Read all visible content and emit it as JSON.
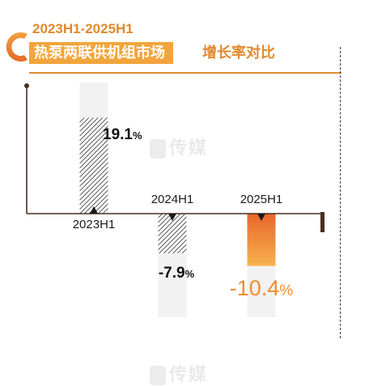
{
  "header": {
    "period": "2023H1-2025H1",
    "title": "热泵两联供机组市场",
    "title_suffix": "增长率对比"
  },
  "watermark": "传媒",
  "chart_data": {
    "type": "bar",
    "title": "热泵两联供机组市场增长率对比",
    "subtitle": "2023H1-2025H1",
    "categories": [
      "2023H1",
      "2024H1",
      "2025H1"
    ],
    "values": [
      19.1,
      -7.9,
      -10.4
    ],
    "unit": "%",
    "labels": [
      "19.1",
      "-7.9",
      "-10.4"
    ],
    "ylim": [
      -15,
      25
    ],
    "grid": false,
    "legend": "none",
    "colors": {
      "hatch": "#444444",
      "highlight_top": "#e8672a",
      "highlight_bottom": "#f7b24d",
      "highlight_text": "#f08c2c",
      "axis": "#4a2e22",
      "bg_bar": "#f2f2f2"
    }
  }
}
